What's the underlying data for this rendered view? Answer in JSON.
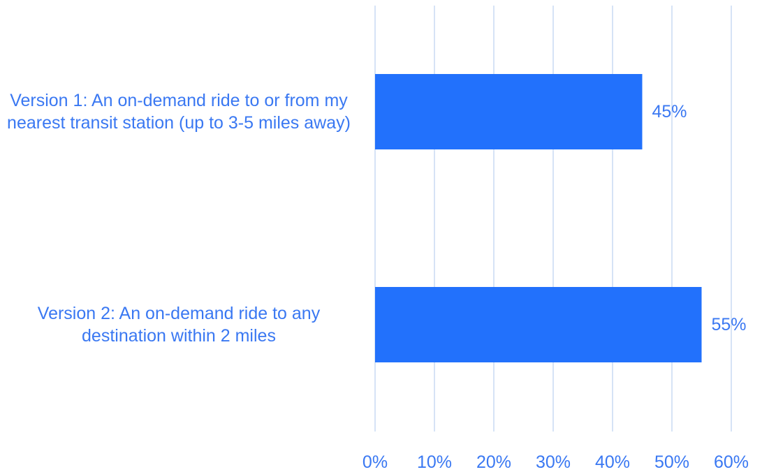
{
  "chart_data": {
    "type": "bar",
    "orientation": "horizontal",
    "categories": [
      "Version 1: An on-demand ride to or from my nearest transit station (up to 3-5 miles away)",
      "Version 2: An on-demand ride to any destination within 2 miles"
    ],
    "values": [
      45,
      55
    ],
    "value_labels": [
      "45%",
      "55%"
    ],
    "title": "",
    "xlabel": "",
    "ylabel": "",
    "xlim": [
      0,
      60
    ],
    "x_ticks": [
      0,
      10,
      20,
      30,
      40,
      50,
      60
    ],
    "x_tick_labels": [
      "0%",
      "10%",
      "20%",
      "30%",
      "40%",
      "50%",
      "60%"
    ],
    "grid": "vertical",
    "legend": "none",
    "colors": {
      "bar": "#2271fc",
      "text": "#3a78f2",
      "grid": "#c9daf3"
    }
  }
}
